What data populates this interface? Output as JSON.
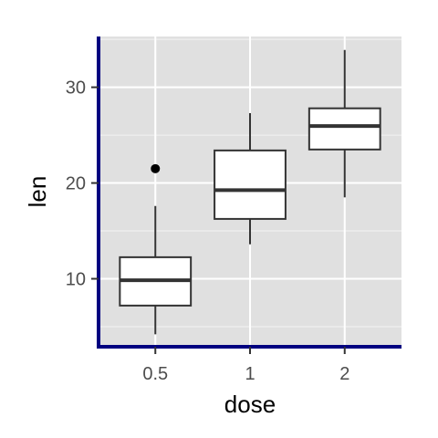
{
  "chart_data": {
    "type": "boxplot",
    "title": "",
    "xlabel": "dose",
    "ylabel": "len",
    "categories": [
      "0.5",
      "1",
      "2"
    ],
    "boxes": [
      {
        "category": "0.5",
        "min": 4.2,
        "q1": 7.2,
        "median": 9.85,
        "q3": 12.25,
        "max": 17.6,
        "outliers": [
          21.5
        ]
      },
      {
        "category": "1",
        "min": 13.6,
        "q1": 16.25,
        "median": 19.25,
        "q3": 23.4,
        "max": 27.3,
        "outliers": []
      },
      {
        "category": "2",
        "min": 18.5,
        "q1": 23.5,
        "median": 25.95,
        "q3": 27.8,
        "max": 33.9,
        "outliers": []
      }
    ],
    "ylim": [
      2.9,
      35.3
    ],
    "yticks": [
      10,
      20,
      30
    ],
    "ytick_labels": [
      "10",
      "20",
      "30"
    ],
    "grid": true,
    "legend": "none",
    "colors": {
      "panel_background": "#e0e0e0",
      "grid": "#ffffff",
      "box_fill": "#ffffff",
      "box_stroke": "#333333",
      "axis_line": "#000080",
      "outlier": "#000000"
    }
  }
}
